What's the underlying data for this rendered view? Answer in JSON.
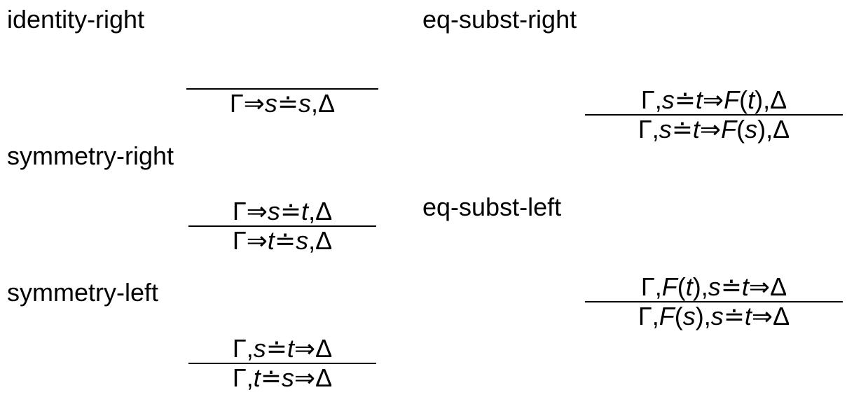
{
  "rules": {
    "identity_right": {
      "name": "identity-right",
      "premise": "",
      "conclusion": "Γ ⇒ s ≐ s, Δ"
    },
    "symmetry_right": {
      "name": "symmetry-right",
      "premise": "Γ ⇒ s ≐ t, Δ",
      "conclusion": "Γ ⇒ t ≐ s, Δ"
    },
    "symmetry_left": {
      "name": "symmetry-left",
      "premise": "Γ, s ≐ t ⇒ Δ",
      "conclusion": "Γ, t ≐ s ⇒ Δ"
    },
    "eq_subst_right": {
      "name": "eq-subst-right",
      "premise": "Γ, s ≐ t ⇒ F(t), Δ",
      "conclusion": "Γ, s ≐ t ⇒ F(s), Δ"
    },
    "eq_subst_left": {
      "name": "eq-subst-left",
      "premise": "Γ, F(t), s ≐ t ⇒ Δ",
      "conclusion": "Γ, F(s), s ≐ t ⇒ Δ"
    }
  }
}
